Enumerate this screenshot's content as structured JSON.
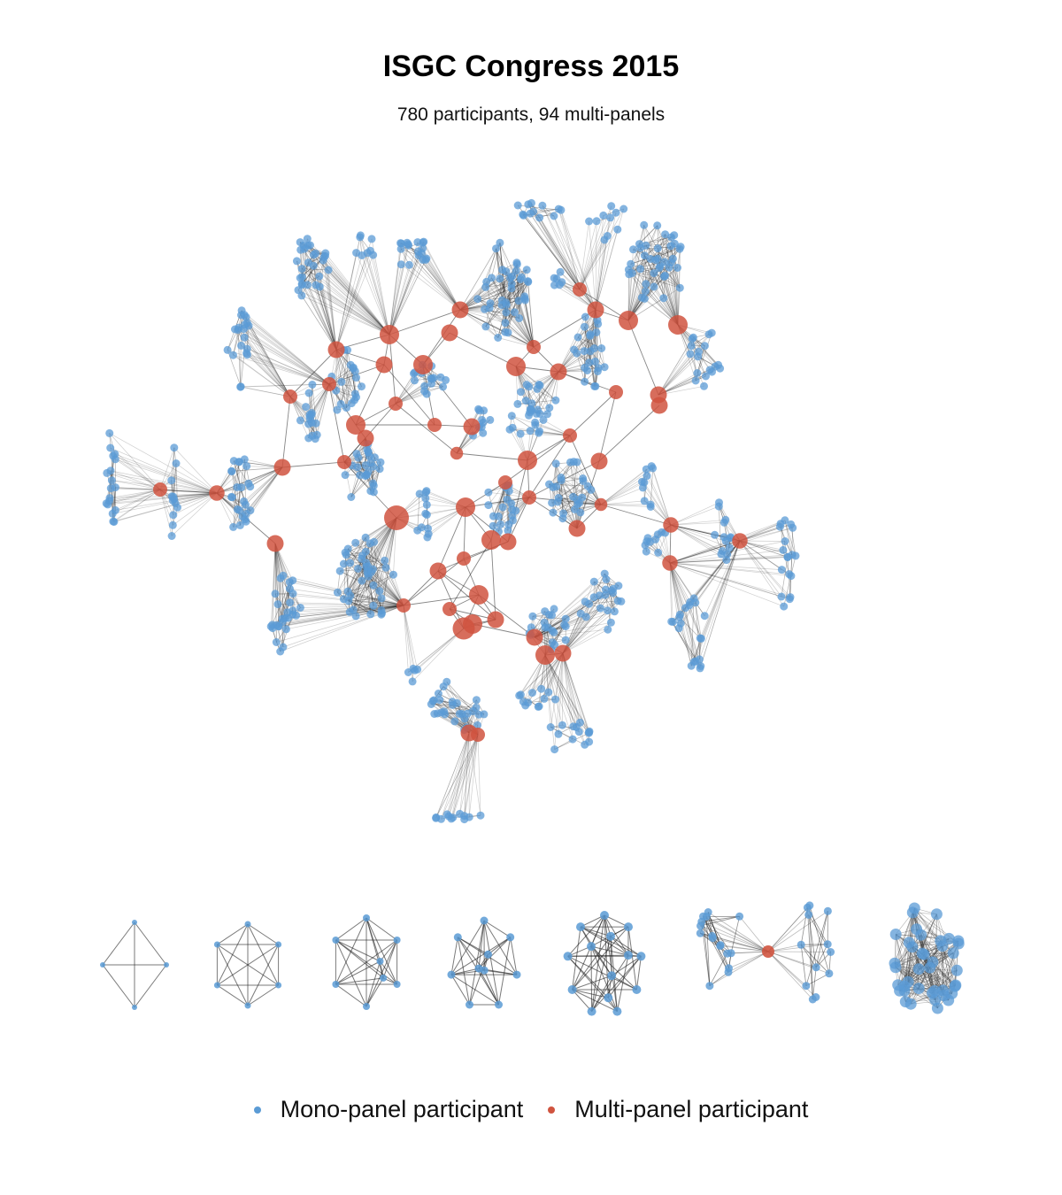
{
  "title": "ISGC Congress 2015",
  "subtitle": "780 participants, 94 multi-panels",
  "legend": {
    "mono": {
      "label": "Mono-panel participant",
      "color": "#5b9bd5"
    },
    "multi": {
      "label": "Multi-panel participant",
      "color": "#d0543f"
    }
  },
  "colors": {
    "edge": "#222222",
    "mono_node": "#5b9bd5",
    "multi_node": "#d0543f"
  },
  "small_components": [
    {
      "mono_participants": 4,
      "multi_participants": 0
    },
    {
      "mono_participants": 6,
      "multi_participants": 0
    },
    {
      "mono_participants": 8,
      "multi_participants": 0
    },
    {
      "mono_participants": 10,
      "multi_participants": 0
    },
    {
      "mono_participants": 14,
      "multi_participants": 0
    },
    {
      "mono_participants": 28,
      "multi_participants": 1
    },
    {
      "mono_participants": 40,
      "multi_participants": 0
    }
  ]
}
